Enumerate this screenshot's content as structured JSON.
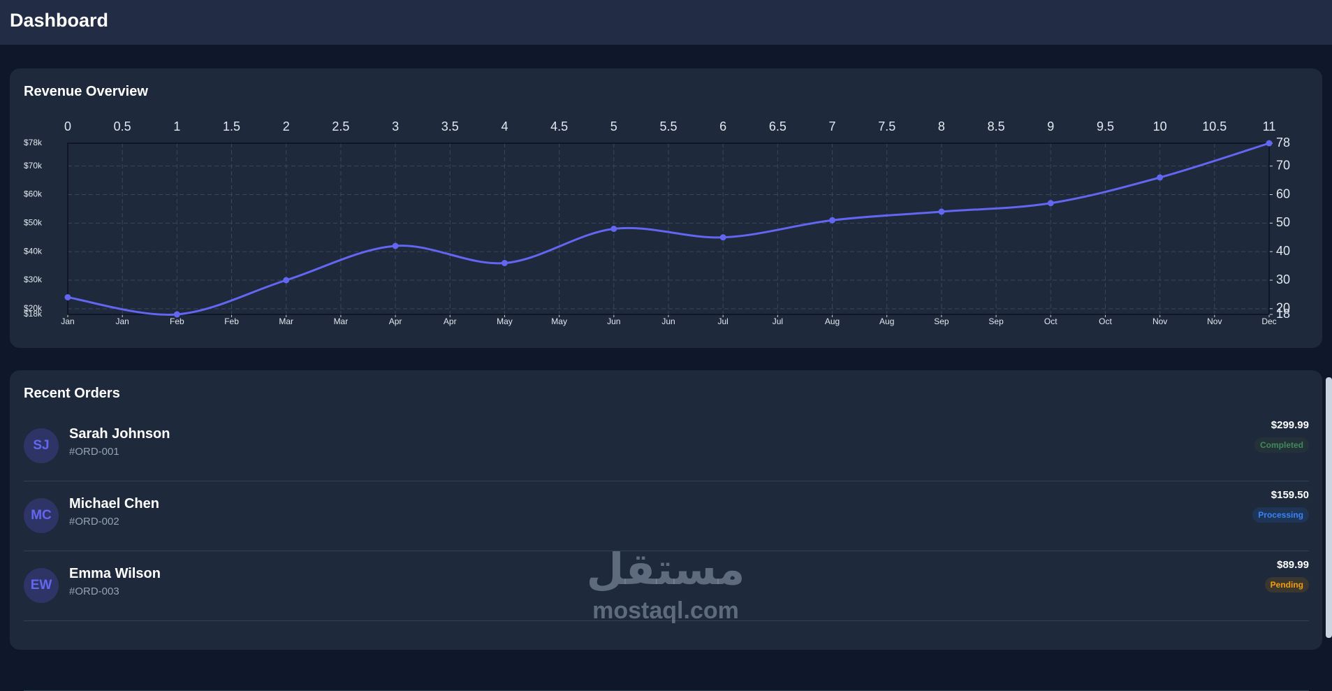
{
  "header": {
    "title": "Dashboard"
  },
  "chart_data": {
    "type": "line",
    "title": "Revenue Overview",
    "x": [
      0,
      1,
      2,
      3,
      4,
      5,
      6,
      7,
      8,
      9,
      10,
      11
    ],
    "series": [
      {
        "color": "#6366f1",
        "values": [
          24,
          18,
          30,
          42,
          36,
          48,
          45,
          51,
          54,
          57,
          66,
          78
        ]
      }
    ],
    "xlim": [
      0,
      11
    ],
    "xticks": [
      0,
      0.5,
      1,
      1.5,
      2,
      2.5,
      3,
      3.5,
      4,
      4.5,
      5,
      5.5,
      6,
      6.5,
      7,
      7.5,
      8,
      8.5,
      9,
      9.5,
      10,
      10.5,
      11
    ],
    "bottom_ticks": [
      {
        "value": 0,
        "label": "Jan"
      },
      {
        "value": 0.5,
        "label": "Jan"
      },
      {
        "value": 1,
        "label": "Feb"
      },
      {
        "value": 1.5,
        "label": "Feb"
      },
      {
        "value": 2,
        "label": "Mar"
      },
      {
        "value": 2.5,
        "label": "Mar"
      },
      {
        "value": 3,
        "label": "Apr"
      },
      {
        "value": 3.5,
        "label": "Apr"
      },
      {
        "value": 4,
        "label": "May"
      },
      {
        "value": 4.5,
        "label": "May"
      },
      {
        "value": 5,
        "label": "Jun"
      },
      {
        "value": 5.5,
        "label": "Jun"
      },
      {
        "value": 6,
        "label": "Jul"
      },
      {
        "value": 6.5,
        "label": "Jul"
      },
      {
        "value": 7,
        "label": "Aug"
      },
      {
        "value": 7.5,
        "label": "Aug"
      },
      {
        "value": 8,
        "label": "Sep"
      },
      {
        "value": 8.5,
        "label": "Sep"
      },
      {
        "value": 9,
        "label": "Oct"
      },
      {
        "value": 9.5,
        "label": "Oct"
      },
      {
        "value": 10,
        "label": "Nov"
      },
      {
        "value": 10.5,
        "label": "Nov"
      },
      {
        "value": 11,
        "label": "Dec"
      }
    ],
    "ylim": [
      18,
      78
    ],
    "yticks": [
      {
        "value": 18,
        "label": "$18k"
      },
      {
        "value": 20,
        "label": "$20k"
      },
      {
        "value": 30,
        "label": "$30k"
      },
      {
        "value": 40,
        "label": "$40k"
      },
      {
        "value": 50,
        "label": "$50k"
      },
      {
        "value": 60,
        "label": "$60k"
      },
      {
        "value": 70,
        "label": "$70k"
      },
      {
        "value": 78,
        "label": "$78k"
      }
    ],
    "y2lim": [
      18,
      78
    ],
    "y2ticks": [
      18,
      20,
      30,
      40,
      50,
      60,
      70,
      78
    ],
    "grid": true
  },
  "orders": {
    "title": "Recent Orders",
    "rows": [
      {
        "initials": "SJ",
        "name": "Sarah Johnson",
        "id": "#ORD-001",
        "amount": "$299.99",
        "status": "Completed"
      },
      {
        "initials": "MC",
        "name": "Michael Chen",
        "id": "#ORD-002",
        "amount": "$159.50",
        "status": "Processing"
      },
      {
        "initials": "EW",
        "name": "Emma Wilson",
        "id": "#ORD-003",
        "amount": "$89.99",
        "status": "Pending"
      }
    ]
  },
  "watermark": {
    "arabic": "مستقل",
    "latin": "mostaql.com"
  }
}
